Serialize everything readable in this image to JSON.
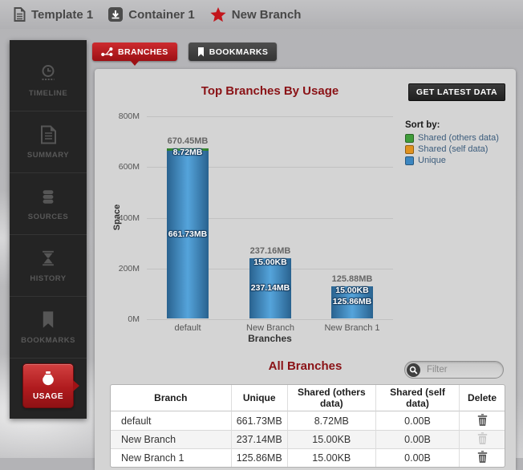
{
  "header": {
    "breadcrumb": [
      {
        "label": "Template 1",
        "icon": "document-icon"
      },
      {
        "label": "Container 1",
        "icon": "container-icon"
      },
      {
        "label": "New Branch",
        "icon": "star-icon"
      }
    ]
  },
  "sidebar": {
    "items": [
      {
        "label": "TIMELINE",
        "icon": "clock-icon",
        "active": false
      },
      {
        "label": "SUMMARY",
        "icon": "summary-icon",
        "active": false
      },
      {
        "label": "SOURCES",
        "icon": "database-icon",
        "active": false
      },
      {
        "label": "HISTORY",
        "icon": "hourglass-icon",
        "active": false
      },
      {
        "label": "BOOKMARKS",
        "icon": "bookmark-icon",
        "active": false
      },
      {
        "label": "USAGE",
        "icon": "usage-icon",
        "active": true
      }
    ]
  },
  "tabs": [
    {
      "label": "BRANCHES",
      "icon": "branch-icon",
      "active": true
    },
    {
      "label": "BOOKMARKS",
      "icon": "bookmark-icon",
      "active": false
    }
  ],
  "panel": {
    "get_latest_label": "GET LATEST DATA",
    "all_branches_title": "All Branches",
    "filter_placeholder": "Filter"
  },
  "chart_data": {
    "type": "bar",
    "stacked": true,
    "title": "Top Branches By Usage",
    "xlabel": "Branches",
    "ylabel": "Space",
    "ylim_mb": [
      0,
      800
    ],
    "yticks": [
      "800M",
      "600M",
      "400M",
      "200M",
      "0M"
    ],
    "grid": true,
    "categories": [
      "default",
      "New Branch",
      "New Branch 1"
    ],
    "totals": {
      "labels": [
        "670.45MB",
        "237.16MB",
        "125.88MB"
      ],
      "mb": [
        670.45,
        237.16,
        125.88
      ]
    },
    "series": [
      {
        "name": "Shared (others data)",
        "color": "#3f9c3a",
        "labels": [
          "8.72MB",
          "15.00KB",
          "15.00KB"
        ],
        "mb": [
          8.72,
          0.015,
          0.015
        ]
      },
      {
        "name": "Shared (self data)",
        "color": "#e0921f",
        "labels": [
          "0.00B",
          "0.00B",
          "0.00B"
        ],
        "mb": [
          0,
          0,
          0
        ]
      },
      {
        "name": "Unique",
        "color": "#3c86c0",
        "labels": [
          "661.73MB",
          "237.14MB",
          "125.86MB"
        ],
        "mb": [
          661.73,
          237.14,
          125.86
        ]
      }
    ],
    "legend": {
      "title": "Sort by:",
      "entries": [
        "Shared (others data)",
        "Shared (self data)",
        "Unique"
      ],
      "position": "right"
    }
  },
  "table": {
    "headers": [
      "Branch",
      "Unique",
      "Shared (others data)",
      "Shared (self data)",
      "Delete"
    ],
    "rows": [
      {
        "branch": "default",
        "unique": "661.73MB",
        "shared_others": "8.72MB",
        "shared_self": "0.00B",
        "delete_enabled": true
      },
      {
        "branch": "New Branch",
        "unique": "237.14MB",
        "shared_others": "15.00KB",
        "shared_self": "0.00B",
        "delete_enabled": false
      },
      {
        "branch": "New Branch 1",
        "unique": "125.86MB",
        "shared_others": "15.00KB",
        "shared_self": "0.00B",
        "delete_enabled": true
      }
    ]
  },
  "colors": {
    "accent_red": "#b5181c",
    "title_red": "#8a1216",
    "bar_blue": "#3c86c0",
    "bar_green": "#3f9c3a",
    "legend_orange": "#e0921f",
    "panel_bg": "#d4d4d4",
    "sidebar_bg": "#242424"
  }
}
